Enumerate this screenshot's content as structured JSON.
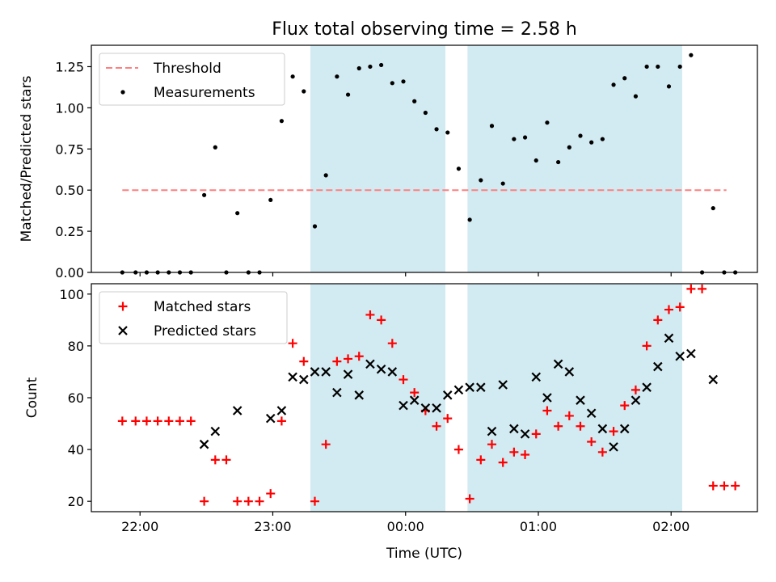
{
  "figure": {
    "title": "Flux total observing time = 2.58 h"
  },
  "chart_data": [
    {
      "type": "scatter",
      "panel": "top",
      "ylabel": "Matched/Predicted stars",
      "ylim": [
        0,
        1.38
      ],
      "yticks": [
        0.0,
        0.25,
        0.5,
        0.75,
        1.0,
        1.25
      ],
      "ytick_labels": [
        "0.00",
        "0.25",
        "0.50",
        "0.75",
        "1.00",
        "1.25"
      ],
      "shaded_intervals": [
        [
          "23:17",
          "00:18"
        ],
        [
          "00:28",
          "02:05"
        ]
      ],
      "shade_color": "#add8e6",
      "legend": {
        "placement": "upper-left",
        "entries": [
          {
            "label": "Threshold",
            "style": "dashed-line",
            "color": "#ff7f7f"
          },
          {
            "label": "Measurements",
            "style": "dot",
            "color": "#000000"
          }
        ]
      },
      "threshold": {
        "name": "Threshold",
        "value": 0.5,
        "x_range": [
          "21:52",
          "02:25"
        ],
        "color": "#ff7f7f"
      },
      "series": [
        {
          "name": "Measurements",
          "color": "#000000",
          "marker": "dot",
          "points": [
            [
              "21:52",
              0.0
            ],
            [
              "21:58",
              0.0
            ],
            [
              "22:03",
              0.0
            ],
            [
              "22:08",
              0.0
            ],
            [
              "22:13",
              0.0
            ],
            [
              "22:18",
              0.0
            ],
            [
              "22:23",
              0.0
            ],
            [
              "22:29",
              0.47
            ],
            [
              "22:34",
              0.76
            ],
            [
              "22:39",
              0.0
            ],
            [
              "22:44",
              0.36
            ],
            [
              "22:49",
              0.0
            ],
            [
              "22:54",
              0.0
            ],
            [
              "22:59",
              0.44
            ],
            [
              "23:04",
              0.92
            ],
            [
              "23:09",
              1.19
            ],
            [
              "23:14",
              1.1
            ],
            [
              "23:19",
              0.28
            ],
            [
              "23:24",
              0.59
            ],
            [
              "23:29",
              1.19
            ],
            [
              "23:34",
              1.08
            ],
            [
              "23:39",
              1.24
            ],
            [
              "23:44",
              1.25
            ],
            [
              "23:49",
              1.26
            ],
            [
              "23:54",
              1.15
            ],
            [
              "23:59",
              1.16
            ],
            [
              "00:04",
              1.04
            ],
            [
              "00:09",
              0.97
            ],
            [
              "00:14",
              0.87
            ],
            [
              "00:19",
              0.85
            ],
            [
              "00:24",
              0.63
            ],
            [
              "00:29",
              0.32
            ],
            [
              "00:34",
              0.56
            ],
            [
              "00:39",
              0.89
            ],
            [
              "00:44",
              0.54
            ],
            [
              "00:49",
              0.81
            ],
            [
              "00:54",
              0.82
            ],
            [
              "00:59",
              0.68
            ],
            [
              "01:04",
              0.91
            ],
            [
              "01:09",
              0.67
            ],
            [
              "01:14",
              0.76
            ],
            [
              "01:19",
              0.83
            ],
            [
              "01:24",
              0.79
            ],
            [
              "01:29",
              0.81
            ],
            [
              "01:34",
              1.14
            ],
            [
              "01:39",
              1.18
            ],
            [
              "01:44",
              1.07
            ],
            [
              "01:49",
              1.25
            ],
            [
              "01:54",
              1.25
            ],
            [
              "01:59",
              1.13
            ],
            [
              "02:04",
              1.25
            ],
            [
              "02:09",
              1.32
            ],
            [
              "02:14",
              0.0
            ],
            [
              "02:19",
              0.39
            ],
            [
              "02:24",
              0.0
            ],
            [
              "02:29",
              0.0
            ]
          ]
        }
      ]
    },
    {
      "type": "scatter",
      "panel": "bottom",
      "xlabel": "Time (UTC)",
      "ylabel": "Count",
      "xlim": [
        "21:38",
        "02:39"
      ],
      "xticks": [
        "22:00",
        "23:00",
        "00:00",
        "01:00",
        "02:00"
      ],
      "ylim": [
        16,
        104
      ],
      "yticks": [
        20,
        40,
        60,
        80,
        100
      ],
      "shaded_intervals": [
        [
          "23:17",
          "00:18"
        ],
        [
          "00:28",
          "02:05"
        ]
      ],
      "shade_color": "#add8e6",
      "legend": {
        "placement": "upper-left",
        "entries": [
          {
            "label": "Matched stars",
            "style": "plus",
            "color": "#ff0000"
          },
          {
            "label": "Predicted stars",
            "style": "x",
            "color": "#000000"
          }
        ]
      },
      "series": [
        {
          "name": "Matched stars",
          "color": "#ff0000",
          "marker": "plus",
          "points": [
            [
              "21:52",
              51
            ],
            [
              "21:58",
              51
            ],
            [
              "22:03",
              51
            ],
            [
              "22:08",
              51
            ],
            [
              "22:13",
              51
            ],
            [
              "22:18",
              51
            ],
            [
              "22:23",
              51
            ],
            [
              "22:29",
              20
            ],
            [
              "22:34",
              36
            ],
            [
              "22:39",
              36
            ],
            [
              "22:44",
              20
            ],
            [
              "22:49",
              20
            ],
            [
              "22:54",
              20
            ],
            [
              "22:59",
              23
            ],
            [
              "23:04",
              51
            ],
            [
              "23:09",
              81
            ],
            [
              "23:14",
              74
            ],
            [
              "23:19",
              20
            ],
            [
              "23:24",
              42
            ],
            [
              "23:29",
              74
            ],
            [
              "23:34",
              75
            ],
            [
              "23:39",
              76
            ],
            [
              "23:44",
              92
            ],
            [
              "23:49",
              90
            ],
            [
              "23:54",
              81
            ],
            [
              "23:59",
              67
            ],
            [
              "00:04",
              62
            ],
            [
              "00:09",
              55
            ],
            [
              "00:14",
              49
            ],
            [
              "00:19",
              52
            ],
            [
              "00:24",
              40
            ],
            [
              "00:29",
              21
            ],
            [
              "00:34",
              36
            ],
            [
              "00:39",
              42
            ],
            [
              "00:44",
              35
            ],
            [
              "00:49",
              39
            ],
            [
              "00:54",
              38
            ],
            [
              "00:59",
              46
            ],
            [
              "01:04",
              55
            ],
            [
              "01:09",
              49
            ],
            [
              "01:14",
              53
            ],
            [
              "01:19",
              49
            ],
            [
              "01:24",
              43
            ],
            [
              "01:29",
              39
            ],
            [
              "01:34",
              47
            ],
            [
              "01:39",
              57
            ],
            [
              "01:44",
              63
            ],
            [
              "01:49",
              80
            ],
            [
              "01:54",
              90
            ],
            [
              "01:59",
              94
            ],
            [
              "02:04",
              95
            ],
            [
              "02:09",
              102
            ],
            [
              "02:14",
              102
            ],
            [
              "02:19",
              26
            ],
            [
              "02:24",
              26
            ],
            [
              "02:29",
              26
            ]
          ]
        },
        {
          "name": "Predicted stars",
          "color": "#000000",
          "marker": "x",
          "points": [
            [
              "22:29",
              42
            ],
            [
              "22:34",
              47
            ],
            [
              "22:44",
              55
            ],
            [
              "22:59",
              52
            ],
            [
              "23:04",
              55
            ],
            [
              "23:09",
              68
            ],
            [
              "23:14",
              67
            ],
            [
              "23:19",
              70
            ],
            [
              "23:24",
              70
            ],
            [
              "23:29",
              62
            ],
            [
              "23:34",
              69
            ],
            [
              "23:39",
              61
            ],
            [
              "23:44",
              73
            ],
            [
              "23:49",
              71
            ],
            [
              "23:54",
              70
            ],
            [
              "23:59",
              57
            ],
            [
              "00:04",
              59
            ],
            [
              "00:09",
              56
            ],
            [
              "00:14",
              56
            ],
            [
              "00:19",
              61
            ],
            [
              "00:24",
              63
            ],
            [
              "00:29",
              64
            ],
            [
              "00:34",
              64
            ],
            [
              "00:39",
              47
            ],
            [
              "00:44",
              65
            ],
            [
              "00:49",
              48
            ],
            [
              "00:54",
              46
            ],
            [
              "00:59",
              68
            ],
            [
              "01:04",
              60
            ],
            [
              "01:09",
              73
            ],
            [
              "01:14",
              70
            ],
            [
              "01:19",
              59
            ],
            [
              "01:24",
              54
            ],
            [
              "01:29",
              48
            ],
            [
              "01:34",
              41
            ],
            [
              "01:39",
              48
            ],
            [
              "01:44",
              59
            ],
            [
              "01:49",
              64
            ],
            [
              "01:54",
              72
            ],
            [
              "01:59",
              83
            ],
            [
              "02:04",
              76
            ],
            [
              "02:09",
              77
            ],
            [
              "02:19",
              67
            ]
          ]
        }
      ]
    }
  ]
}
